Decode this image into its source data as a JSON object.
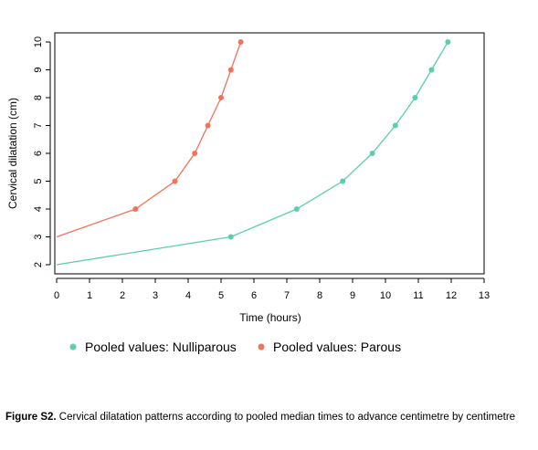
{
  "chart_data": {
    "type": "line",
    "xlabel": "Time (hours)",
    "ylabel": "Cervical dilatation (cm)",
    "xlim": [
      0,
      13
    ],
    "ylim": [
      2,
      10
    ],
    "xticks": [
      "0",
      "1",
      "2",
      "3",
      "4",
      "5",
      "6",
      "7",
      "8",
      "9",
      "10",
      "11",
      "12",
      "13"
    ],
    "yticks": [
      "2",
      "3",
      "4",
      "5",
      "6",
      "7",
      "8",
      "9",
      "10"
    ],
    "grid": false,
    "legend_position": "bottom",
    "series": [
      {
        "name": "Pooled values: Nulliparous",
        "color": "#5ccfaa",
        "points": [
          [
            0,
            2
          ],
          [
            5.3,
            3
          ],
          [
            7.3,
            4
          ],
          [
            8.7,
            5
          ],
          [
            9.6,
            6
          ],
          [
            10.3,
            7
          ],
          [
            10.9,
            8
          ],
          [
            11.4,
            9
          ],
          [
            11.9,
            10
          ]
        ]
      },
      {
        "name": "Pooled values: Parous",
        "color": "#f4725a",
        "points": [
          [
            0,
            3
          ],
          [
            2.4,
            4
          ],
          [
            3.6,
            5
          ],
          [
            4.2,
            6
          ],
          [
            4.6,
            7
          ],
          [
            5.0,
            8
          ],
          [
            5.3,
            9
          ],
          [
            5.6,
            10
          ]
        ]
      }
    ]
  },
  "caption": {
    "label": "Figure S2.",
    "text": " Cervical dilatation patterns according to pooled median times to advance centimetre by centimetre"
  }
}
